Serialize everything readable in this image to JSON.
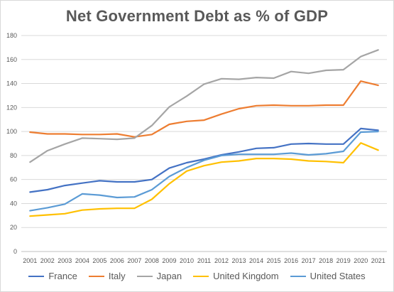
{
  "chart_data": {
    "type": "line",
    "title": "Net Government Debt as % of GDP",
    "xlabel": "",
    "ylabel": "",
    "ylim": [
      0,
      180
    ],
    "y_ticks": [
      "0",
      "20",
      "40",
      "60",
      "80",
      "100",
      "120",
      "140",
      "160",
      "180"
    ],
    "grid": "horizontal",
    "legend_position": "bottom",
    "categories": [
      "2001",
      "2002",
      "2003",
      "2004",
      "2005",
      "2006",
      "2007",
      "2008",
      "2009",
      "2010",
      "2011",
      "2012",
      "2013",
      "2014",
      "2015",
      "2016",
      "2017",
      "2018",
      "2019",
      "2020",
      "2021"
    ],
    "series": [
      {
        "name": "France",
        "color": "#4472c4",
        "values": [
          49.5,
          51.5,
          55,
          57,
          59,
          58,
          58,
          60,
          69.5,
          74,
          77,
          80.5,
          83,
          86,
          86.5,
          89.5,
          90,
          89.5,
          89.5,
          102.5,
          101
        ]
      },
      {
        "name": "Italy",
        "color": "#ed7d31",
        "values": [
          99.5,
          98,
          98,
          97.5,
          97.5,
          98,
          95.5,
          97.5,
          106,
          108.5,
          109.5,
          114.5,
          119,
          121.5,
          122,
          121.5,
          121.5,
          122,
          122,
          142,
          138.5
        ]
      },
      {
        "name": "Japan",
        "color": "#a5a5a5",
        "values": [
          74.5,
          84,
          89.5,
          94.5,
          94,
          93.5,
          94.5,
          105,
          120.5,
          129.5,
          139.5,
          144,
          143.5,
          145,
          144.5,
          150,
          148.5,
          151,
          151.5,
          162.5,
          168
        ]
      },
      {
        "name": "United Kingdom",
        "color": "#ffc000",
        "values": [
          29.5,
          30.5,
          31.5,
          34.5,
          35.5,
          36,
          36,
          43.5,
          56.5,
          67,
          71.5,
          74.5,
          75.5,
          77.5,
          77.5,
          77,
          75.5,
          75,
          74,
          90.5,
          84.5
        ]
      },
      {
        "name": "United States",
        "color": "#5b9bd5",
        "values": [
          34,
          36.5,
          39.5,
          48,
          47,
          45,
          45.5,
          51.5,
          62.5,
          70,
          76,
          80,
          81,
          81,
          81,
          82,
          80.5,
          81.5,
          83.5,
          99.5,
          100
        ]
      }
    ]
  }
}
